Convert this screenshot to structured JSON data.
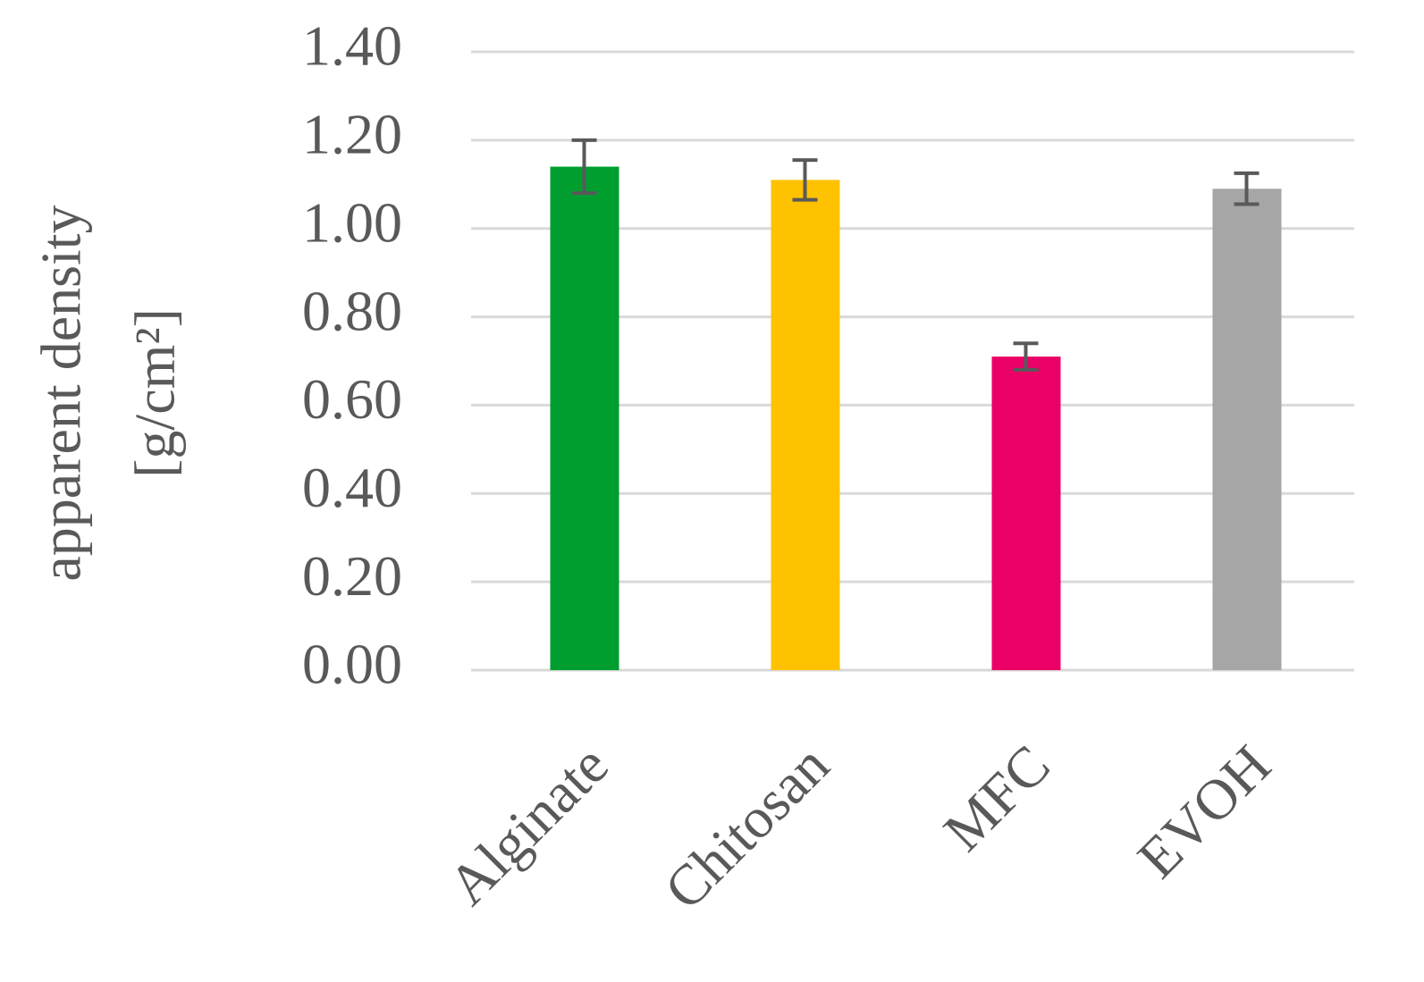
{
  "chart_data": {
    "type": "bar",
    "y_label": [
      "apparent density",
      "[g/cm²]"
    ],
    "categories": [
      "Alginate",
      "Chitosan",
      "MFC",
      "EVOH"
    ],
    "values": [
      1.14,
      1.11,
      0.71,
      1.09
    ],
    "errors": [
      0.06,
      0.045,
      0.03,
      0.035
    ],
    "colors": [
      "#009e2f",
      "#ffc200",
      "#ea0066",
      "#a6a6a6"
    ],
    "ylim": [
      0,
      1.4
    ],
    "yticks": [
      {
        "value": 0,
        "label": "0.00"
      },
      {
        "value": 0.2,
        "label": "0.20"
      },
      {
        "value": 0.4,
        "label": "0.40"
      },
      {
        "value": 0.6,
        "label": "0.60"
      },
      {
        "value": 0.8,
        "label": "0.80"
      },
      {
        "value": 1.0,
        "label": "1.00"
      },
      {
        "value": 1.2,
        "label": "1.20"
      },
      {
        "value": 1.4,
        "label": "1.40"
      }
    ],
    "grid": true
  }
}
